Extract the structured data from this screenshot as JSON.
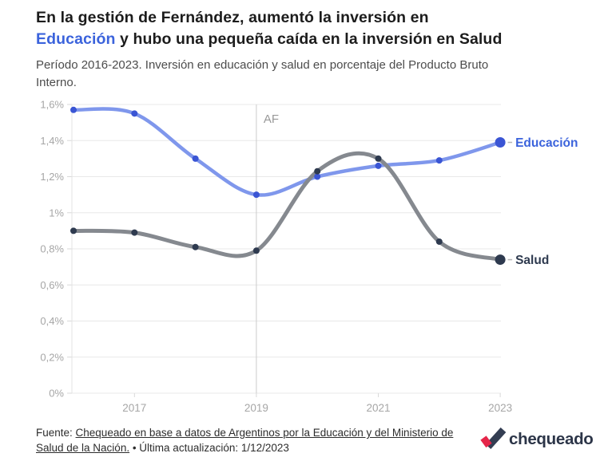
{
  "header": {
    "title_line1": "En la gestión de Fernández, aumentó la inversión en",
    "title_highlight": "Educación",
    "title_line2_rest": " y hubo una pequeña caída en la inversión en Salud",
    "subtitle_line1": "Período 2016-2023. Inversión en educación y salud en porcentaje del Producto Bruto",
    "subtitle_line2": "Interno."
  },
  "chart_data": {
    "type": "line",
    "title": "En la gestión de Fernández, aumentó la inversión en Educación y hubo una pequeña caída en la inversión en Salud",
    "subtitle": "Período 2016-2023. Inversión en educación y salud en porcentaje del Producto Bruto Interno.",
    "x": [
      2016,
      2017,
      2018,
      2019,
      2020,
      2021,
      2022,
      2023
    ],
    "series": [
      {
        "name": "Educación",
        "values": [
          1.57,
          1.55,
          1.3,
          1.1,
          1.2,
          1.26,
          1.29,
          1.39
        ],
        "line_color": "#7f97ec",
        "point_color": "#3a55d4",
        "label_color": "#3b63dc"
      },
      {
        "name": "Salud",
        "values": [
          0.9,
          0.89,
          0.81,
          0.79,
          1.23,
          1.3,
          0.84,
          0.74
        ],
        "line_color": "#85898f",
        "point_color": "#2e3a4f",
        "label_color": "#2e3a4f"
      }
    ],
    "y_tick_labels": [
      "0%",
      "0,2%",
      "0,4%",
      "0,6%",
      "0,8%",
      "1%",
      "1,2%",
      "1,4%",
      "1,6%"
    ],
    "y_tick_values": [
      0,
      0.2,
      0.4,
      0.6,
      0.8,
      1.0,
      1.2,
      1.4,
      1.6
    ],
    "x_tick_labels": [
      "2017",
      "2019",
      "2021",
      "2023"
    ],
    "x_tick_years": [
      2017,
      2019,
      2021,
      2023
    ],
    "ylim": [
      0,
      1.6
    ],
    "grid": true,
    "legend_position": "line-end-labels",
    "annotation": {
      "label": "AF",
      "x": 2019
    }
  },
  "footer": {
    "source_prefix": "Fuente: ",
    "source_link": "Chequeado en base a datos de Argentinos por la Educación y del Ministerio de Salud de la Nación.",
    "updated": " • Última actualización: 1/12/2023",
    "logo_text": "chequeado"
  },
  "colors": {
    "title_text": "#1c1c1c",
    "title_highlight": "#3b63dc",
    "subtitle_text": "#4c4c4c",
    "axis_text": "#a6a6a6",
    "gridline": "#e8e8e8",
    "axis_line": "#e3e3e3",
    "tick": "#d9d9d9",
    "annotation_line": "#cccccc",
    "annotation_text": "#999999",
    "label_dash": "#b5b5b5",
    "footer_text": "#2d2d2d",
    "logo_navy": "#2c3548",
    "logo_red": "#e52549"
  }
}
